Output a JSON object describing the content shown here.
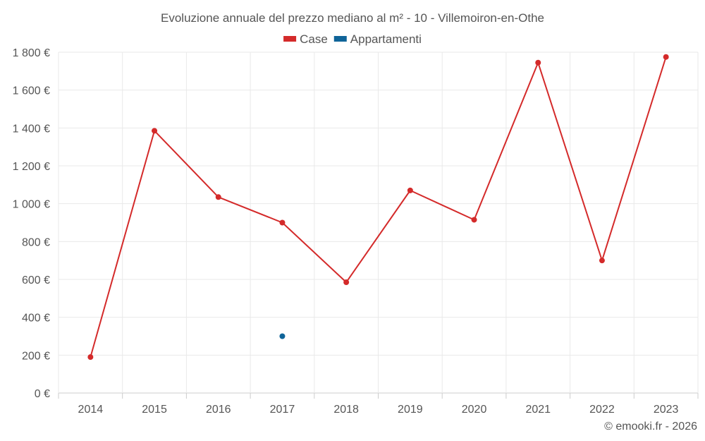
{
  "chart_data": {
    "type": "line",
    "title": "Evoluzione annuale del prezzo mediano al m² - 10 - Villemoiron-en-Othe",
    "categories": [
      "2014",
      "2015",
      "2016",
      "2017",
      "2018",
      "2019",
      "2020",
      "2021",
      "2022",
      "2023"
    ],
    "series": [
      {
        "name": "Case",
        "color": "#d42a2a",
        "values": [
          190,
          1385,
          1035,
          900,
          585,
          1070,
          915,
          1745,
          700,
          1775
        ]
      },
      {
        "name": "Appartamenti",
        "color": "#0f6499",
        "values": [
          null,
          null,
          null,
          300,
          null,
          null,
          null,
          null,
          null,
          null
        ]
      }
    ],
    "ylim": [
      0,
      1800
    ],
    "yticks": [
      0,
      200,
      400,
      600,
      800,
      1000,
      1200,
      1400,
      1600,
      1800
    ],
    "ytick_labels": [
      "0 €",
      "200 €",
      "400 €",
      "600 €",
      "800 €",
      "1 000 €",
      "1 200 €",
      "1 400 €",
      "1 600 €",
      "1 800 €"
    ],
    "xlabel": "",
    "ylabel": "",
    "grid": true,
    "legend_position": "top-center"
  },
  "credit": "© emooki.fr - 2026"
}
